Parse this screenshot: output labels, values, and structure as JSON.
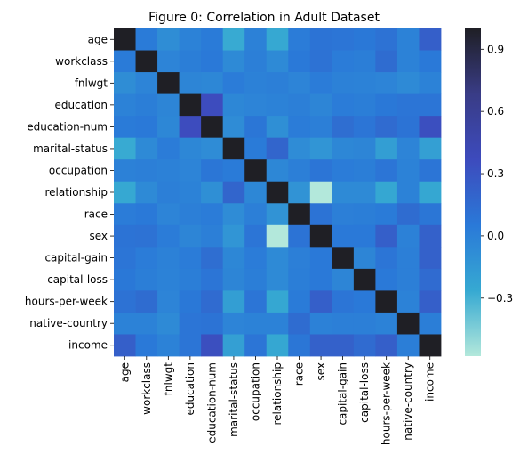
{
  "chart_data": {
    "type": "heatmap",
    "title": "Figure 0: Correlation in Adult Dataset",
    "labels": [
      "age",
      "workclass",
      "fnlwgt",
      "education",
      "education-num",
      "marital-status",
      "occupation",
      "relationship",
      "race",
      "sex",
      "capital-gain",
      "capital-loss",
      "hours-per-week",
      "native-country",
      "income"
    ],
    "values": [
      [
        1.0,
        0.04,
        -0.08,
        -0.01,
        0.04,
        -0.27,
        0.0,
        -0.26,
        0.03,
        0.09,
        0.08,
        0.06,
        0.1,
        -0.01,
        0.23
      ],
      [
        0.04,
        1.0,
        -0.02,
        0.02,
        0.05,
        -0.06,
        0.01,
        -0.06,
        0.05,
        0.1,
        0.03,
        0.02,
        0.14,
        -0.01,
        0.05
      ],
      [
        -0.08,
        -0.02,
        1.0,
        -0.03,
        -0.04,
        0.03,
        0.0,
        0.01,
        -0.02,
        0.03,
        0.0,
        -0.01,
        -0.02,
        -0.06,
        -0.01
      ],
      [
        -0.01,
        0.02,
        -0.03,
        1.0,
        0.36,
        -0.04,
        -0.02,
        -0.01,
        0.01,
        -0.03,
        0.03,
        0.02,
        0.06,
        0.08,
        0.08
      ],
      [
        0.04,
        0.05,
        -0.04,
        0.36,
        1.0,
        -0.07,
        0.07,
        -0.09,
        0.03,
        0.01,
        0.13,
        0.08,
        0.15,
        0.09,
        0.34
      ],
      [
        -0.27,
        -0.06,
        0.03,
        -0.04,
        -0.07,
        1.0,
        0.04,
        0.19,
        -0.07,
        -0.13,
        -0.04,
        -0.03,
        -0.19,
        -0.02,
        -0.2
      ],
      [
        0.0,
        0.01,
        0.0,
        -0.02,
        0.07,
        0.04,
        1.0,
        -0.04,
        0.01,
        0.08,
        0.03,
        0.02,
        0.08,
        -0.01,
        0.08
      ],
      [
        -0.26,
        -0.06,
        0.01,
        -0.01,
        -0.09,
        0.19,
        -0.04,
        1.0,
        -0.12,
        -0.58,
        -0.06,
        -0.06,
        -0.25,
        -0.01,
        -0.25
      ],
      [
        0.03,
        0.05,
        -0.02,
        0.01,
        0.03,
        -0.07,
        0.01,
        -0.12,
        1.0,
        0.09,
        0.01,
        0.02,
        0.04,
        0.14,
        0.07
      ],
      [
        0.09,
        0.1,
        0.03,
        -0.03,
        0.01,
        -0.13,
        0.08,
        -0.58,
        0.09,
        1.0,
        0.05,
        0.05,
        0.23,
        0.0,
        0.22
      ],
      [
        0.08,
        0.03,
        0.0,
        0.03,
        0.13,
        -0.04,
        0.03,
        -0.06,
        0.01,
        0.05,
        1.0,
        -0.03,
        0.08,
        0.01,
        0.22
      ],
      [
        0.06,
        0.02,
        -0.01,
        0.02,
        0.08,
        -0.03,
        0.02,
        -0.06,
        0.02,
        0.05,
        -0.03,
        1.0,
        0.05,
        0.01,
        0.15
      ],
      [
        0.1,
        0.14,
        -0.02,
        0.06,
        0.15,
        -0.19,
        0.08,
        -0.25,
        0.04,
        0.23,
        0.08,
        0.05,
        1.0,
        -0.01,
        0.23
      ],
      [
        -0.01,
        -0.01,
        -0.06,
        0.08,
        0.09,
        -0.02,
        -0.01,
        -0.01,
        0.14,
        0.0,
        0.01,
        0.01,
        -0.01,
        1.0,
        0.02
      ],
      [
        0.23,
        0.05,
        -0.01,
        0.08,
        0.34,
        -0.2,
        0.08,
        -0.25,
        0.07,
        0.22,
        0.22,
        0.15,
        0.23,
        0.02,
        1.0
      ]
    ],
    "colorbar": {
      "vmin": -0.58,
      "vmax": 1.0,
      "ticks": [
        -0.3,
        0.0,
        0.3,
        0.6,
        0.9
      ],
      "tick_labels": [
        "−0.3",
        "0.0",
        "0.3",
        "0.6",
        "0.9"
      ]
    },
    "grid": false,
    "colormap": [
      "#b3e8db",
      "#36a9d2",
      "#2a79d8",
      "#3d4bbd",
      "#393c86",
      "#1f1f25"
    ]
  }
}
